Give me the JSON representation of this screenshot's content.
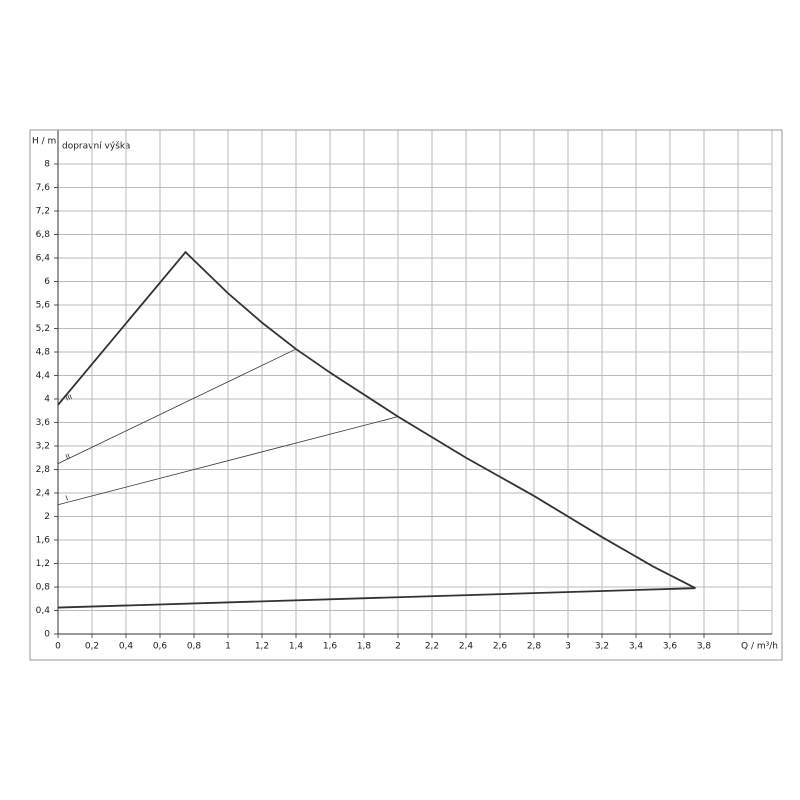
{
  "chart_data": {
    "type": "line",
    "y_label": "H / m",
    "y_caption": "dopravní výška",
    "x_label": "Q / m³/h",
    "xlim": [
      0,
      4.2
    ],
    "ylim": [
      0,
      8.4
    ],
    "grid": true,
    "color": "#333333",
    "xticks": [
      0,
      {
        "value": 0.2,
        "label": "0,2"
      },
      {
        "value": 0.4,
        "label": "0,4"
      },
      {
        "value": 0.6,
        "label": "0,6"
      },
      {
        "value": 0.8,
        "label": "0,8"
      },
      1,
      {
        "value": 1.2,
        "label": "1,2"
      },
      {
        "value": 1.4,
        "label": "1,4"
      },
      {
        "value": 1.6,
        "label": "1,6"
      },
      {
        "value": 1.8,
        "label": "1,8"
      },
      2,
      {
        "value": 2.2,
        "label": "2,2"
      },
      {
        "value": 2.4,
        "label": "2,4"
      },
      {
        "value": 2.6,
        "label": "2,6"
      },
      {
        "value": 2.8,
        "label": "2,8"
      },
      3,
      {
        "value": 3.2,
        "label": "3,2"
      },
      {
        "value": 3.4,
        "label": "3,4"
      },
      {
        "value": 3.6,
        "label": "3,6"
      },
      {
        "value": 3.8,
        "label": "3,8"
      }
    ],
    "yticks": [
      0,
      {
        "value": 0.4,
        "label": "0,4"
      },
      {
        "value": 0.8,
        "label": "0,8"
      },
      {
        "value": 1.2,
        "label": "1,2"
      },
      {
        "value": 1.6,
        "label": "1,6"
      },
      2,
      {
        "value": 2.4,
        "label": "2,4"
      },
      {
        "value": 2.8,
        "label": "2,8"
      },
      {
        "value": 3.2,
        "label": "3,2"
      },
      {
        "value": 3.6,
        "label": "3,6"
      },
      4,
      {
        "value": 4.4,
        "label": "4,4"
      },
      {
        "value": 4.8,
        "label": "4,8"
      },
      {
        "value": 5.2,
        "label": "5,2"
      },
      {
        "value": 5.6,
        "label": "5,6"
      },
      6,
      {
        "value": 6.4,
        "label": "6,4"
      },
      {
        "value": 6.8,
        "label": "6,8"
      },
      {
        "value": 7.2,
        "label": "7,2"
      },
      {
        "value": 7.6,
        "label": "7,6"
      },
      8
    ],
    "series": [
      {
        "name": "III",
        "x": [
          0,
          0.75,
          1,
          1.2,
          1.4,
          1.6,
          2,
          2.4,
          2.8,
          3.2,
          3.5,
          3.75
        ],
        "values": [
          3.9,
          6.5,
          5.8,
          5.3,
          4.85,
          4.45,
          3.7,
          3.0,
          2.35,
          1.65,
          1.15,
          0.78
        ]
      },
      {
        "name": "II",
        "x": [
          0,
          1.4
        ],
        "values": [
          2.9,
          4.85
        ]
      },
      {
        "name": "I",
        "x": [
          0,
          2
        ],
        "values": [
          2.2,
          3.7
        ]
      },
      {
        "x": [
          0,
          3.75
        ],
        "values": [
          0.45,
          0.78
        ]
      }
    ]
  }
}
